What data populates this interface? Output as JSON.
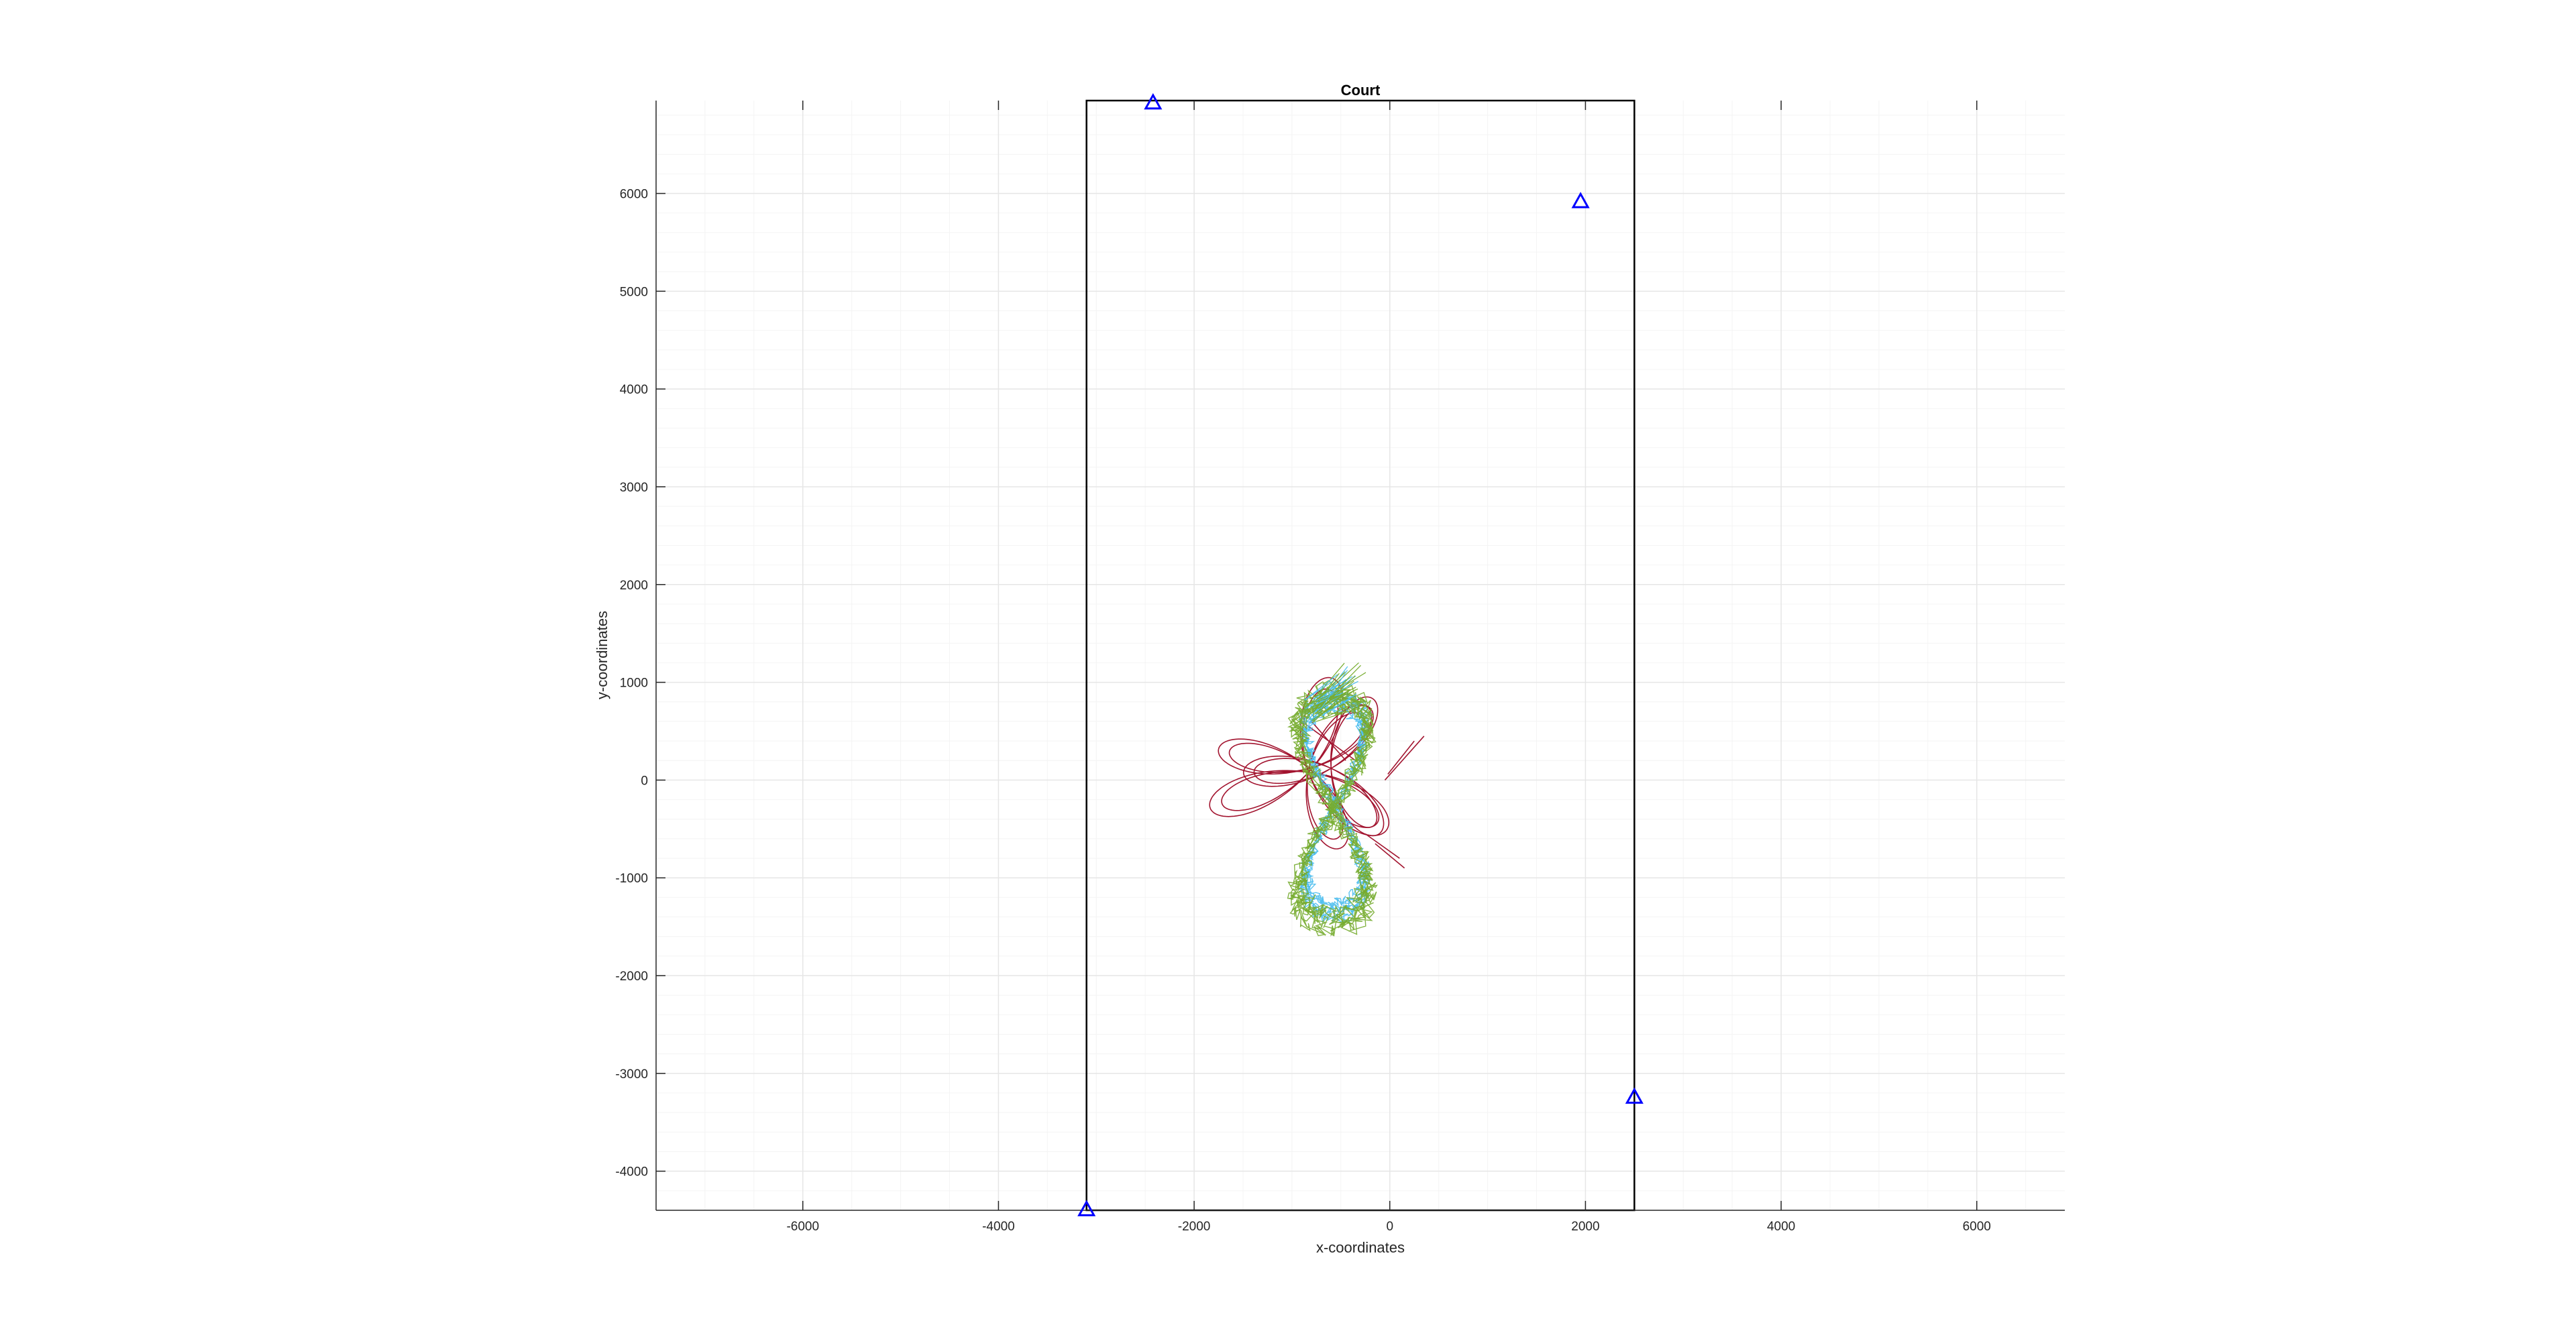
{
  "chart_data": {
    "type": "line",
    "title": "Court",
    "xlabel": "x-coordinates",
    "ylabel": "y-coordinates",
    "xlim": [
      -7500,
      6900
    ],
    "ylim": [
      -4400,
      6950
    ],
    "grid": true,
    "minor_grid": true,
    "xticks": [
      -6000,
      -4000,
      -2000,
      0,
      2000,
      4000,
      6000
    ],
    "yticks": [
      -4000,
      -3000,
      -2000,
      -1000,
      0,
      1000,
      2000,
      3000,
      4000,
      5000,
      6000
    ],
    "court": {
      "x": [
        -3100,
        2500
      ],
      "y": [
        -4400,
        6950
      ]
    },
    "anchors": {
      "color": "#0000ff",
      "x": [
        -2420,
        1950,
        2500,
        -3100
      ],
      "y": [
        6930,
        5920,
        -3240,
        -4390
      ]
    },
    "series": [
      {
        "color": "#a2142f",
        "loops": [
          {
            "cx": -825,
            "cy": 120,
            "r": 380,
            "n": 1020,
            "rot": 168
          },
          {
            "cx": -600,
            "cy": 120,
            "r": 360,
            "n": 1000,
            "rot": 183
          },
          {
            "cx": -830,
            "cy": 80,
            "r": 430,
            "n": 1000,
            "rot": 200
          }
        ],
        "spikes": [
          [
            [
              -150,
              -650
            ],
            [
              150,
              -900
            ]
          ],
          [
            [
              -250,
              -550
            ],
            [
              100,
              -800
            ]
          ],
          [
            [
              -50,
              0
            ],
            [
              350,
              450
            ]
          ],
          [
            [
              -20,
              60
            ],
            [
              250,
              400
            ]
          ],
          [
            [
              -900,
              600
            ],
            [
              -350,
              200
            ]
          ],
          [
            [
              -450,
              200
            ],
            [
              -800,
              600
            ]
          ]
        ]
      },
      {
        "color": "#4dbeee",
        "amp_x": 360,
        "amp_y": 2100,
        "cx": -560,
        "cy": -260,
        "noise": 110,
        "loops": 4
      },
      {
        "color": "#77ac30",
        "amp_x": 430,
        "amp_y": 2250,
        "cx": -580,
        "cy": -300,
        "noise": 170,
        "loops": 4
      }
    ]
  }
}
